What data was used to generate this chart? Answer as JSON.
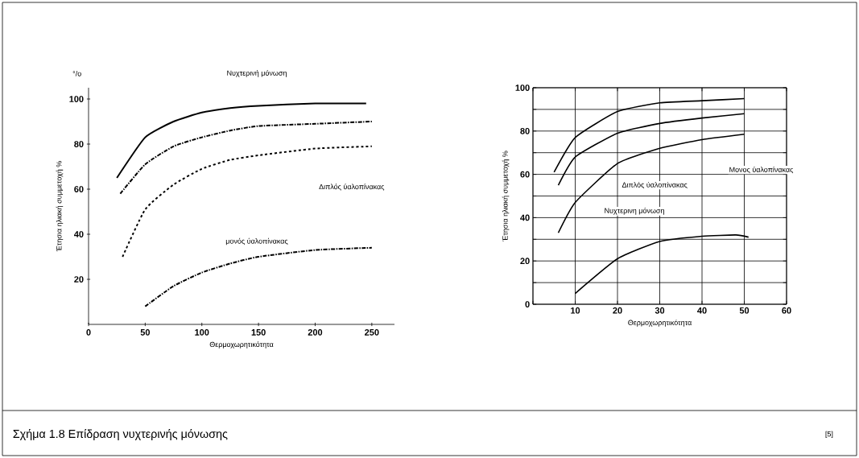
{
  "chart_data": [
    {
      "type": "line",
      "title": "Σχήμα 1.8    Επίδραση νυχτερινής μόνωσης",
      "xlabel": "Θερμοχωρητικότητα",
      "ylabel": "Έτησια ηλιακή συμμετοχή %",
      "annotations": [
        "°/o",
        "Νυχτερινή μόνωση",
        "Διπλός ύαλοπίνακας",
        "μονός ύαλοπίνακας"
      ],
      "xlim": [
        0,
        270
      ],
      "ylim": [
        0,
        105
      ],
      "xticks": [
        0,
        50,
        100,
        150,
        200,
        250
      ],
      "yticks": [
        20,
        40,
        60,
        80,
        100
      ],
      "grid": false,
      "series": [
        {
          "color": "#000000",
          "line_style": "solid",
          "x": [
            25,
            50,
            75,
            100,
            125,
            150,
            200,
            245
          ],
          "values": [
            65,
            83,
            90,
            94,
            96,
            97,
            98,
            98
          ]
        },
        {
          "color": "#000000",
          "line_style": "dashdot",
          "x": [
            28,
            50,
            75,
            100,
            125,
            150,
            200,
            250
          ],
          "values": [
            58,
            71,
            79,
            83,
            86,
            88,
            89,
            90
          ]
        },
        {
          "color": "#000000",
          "line_style": "dashed",
          "x": [
            30,
            50,
            75,
            100,
            125,
            150,
            200,
            250
          ],
          "values": [
            30,
            51,
            62,
            69,
            73,
            75,
            78,
            79
          ]
        },
        {
          "color": "#000000",
          "line_style": "dashdot",
          "x": [
            50,
            75,
            100,
            125,
            150,
            200,
            250
          ],
          "values": [
            8,
            17,
            23,
            27,
            30,
            33,
            34
          ]
        }
      ]
    },
    {
      "type": "line",
      "xlabel": "Θερμοχωρητικότητα",
      "ylabel": "Έτησια ηλιακή συμμετοχή %",
      "annotations": [
        "Διπλός ύαλοπίνακας",
        "Νυχτερινη μόνωση",
        "Μονος ύαλοπίνακας",
        "[5]"
      ],
      "xlim": [
        0,
        60
      ],
      "ylim": [
        0,
        100
      ],
      "xticks": [
        {
          "value": 0,
          "label": null
        },
        10,
        20,
        30,
        40,
        50,
        60
      ],
      "yticks": [
        0,
        {
          "value": 10,
          "label": null
        },
        20,
        {
          "value": 30,
          "label": null
        },
        40,
        {
          "value": 50,
          "label": null
        },
        60,
        {
          "value": 70,
          "label": null
        },
        80,
        {
          "value": 90,
          "label": null
        },
        100
      ],
      "grid": true,
      "series": [
        {
          "color": "#000000",
          "line_style": "solid",
          "x": [
            5,
            10,
            20,
            30,
            40,
            50
          ],
          "values": [
            61,
            77,
            89,
            93,
            94,
            95
          ]
        },
        {
          "color": "#000000",
          "line_style": "solid",
          "x": [
            6,
            10,
            20,
            30,
            40,
            50
          ],
          "values": [
            55,
            68,
            79,
            83.5,
            86,
            88
          ]
        },
        {
          "color": "#000000",
          "line_style": "solid",
          "x": [
            6,
            10,
            20,
            30,
            40,
            50
          ],
          "values": [
            33,
            47,
            65,
            72,
            76,
            78.5
          ]
        },
        {
          "color": "#000000",
          "line_style": "solid",
          "x": [
            10,
            20,
            30,
            40,
            48,
            51
          ],
          "values": [
            5,
            21,
            29,
            31.4,
            32,
            31
          ]
        }
      ]
    }
  ]
}
